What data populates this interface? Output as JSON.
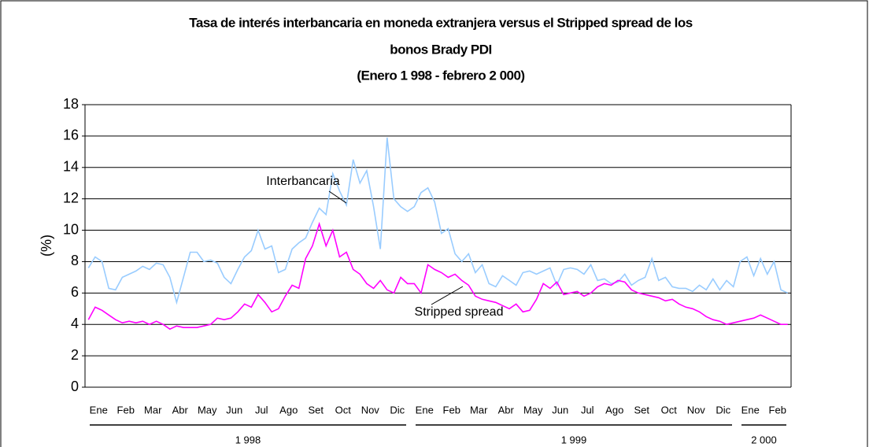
{
  "chart_data": {
    "type": "line",
    "title": [
      "Tasa de interés interbancaria en moneda extranjera versus el Stripped spread de los",
      "bonos Brady PDI"
    ],
    "subtitle": "(Enero 1 998 - febrero 2 000)",
    "y_label": "(%)",
    "ylim": [
      0,
      18
    ],
    "yticks": [
      0,
      2,
      4,
      6,
      8,
      10,
      12,
      14,
      16,
      18
    ],
    "grid": true,
    "xlim": [
      0,
      26
    ],
    "xticks": [
      {
        "value": 0.5,
        "label": "Ene"
      },
      {
        "value": 1.5,
        "label": "Feb"
      },
      {
        "value": 2.5,
        "label": "Mar"
      },
      {
        "value": 3.5,
        "label": "Abr"
      },
      {
        "value": 4.5,
        "label": "May"
      },
      {
        "value": 5.5,
        "label": "Jun"
      },
      {
        "value": 6.5,
        "label": "Jul"
      },
      {
        "value": 7.5,
        "label": "Ago"
      },
      {
        "value": 8.5,
        "label": "Set"
      },
      {
        "value": 9.5,
        "label": "Oct"
      },
      {
        "value": 10.5,
        "label": "Nov"
      },
      {
        "value": 11.5,
        "label": "Dic"
      },
      {
        "value": 12.5,
        "label": "Ene"
      },
      {
        "value": 13.5,
        "label": "Feb"
      },
      {
        "value": 14.5,
        "label": "Mar"
      },
      {
        "value": 15.5,
        "label": "Abr"
      },
      {
        "value": 16.5,
        "label": "May"
      },
      {
        "value": 17.5,
        "label": "Jun"
      },
      {
        "value": 18.5,
        "label": "Jul"
      },
      {
        "value": 19.5,
        "label": "Ago"
      },
      {
        "value": 20.5,
        "label": "Set"
      },
      {
        "value": 21.5,
        "label": "Oct"
      },
      {
        "value": 22.5,
        "label": "Nov"
      },
      {
        "value": 23.5,
        "label": "Dic"
      },
      {
        "value": 24.5,
        "label": "Ene"
      },
      {
        "value": 25.5,
        "label": "Feb"
      }
    ],
    "x_groups": [
      {
        "label": "1 998",
        "range": [
          0,
          12
        ]
      },
      {
        "label": "1 999",
        "range": [
          12,
          24
        ]
      },
      {
        "label": "2 000",
        "range": [
          24,
          26
        ]
      }
    ],
    "annotations": [
      "Interbancaria",
      "Stripped spread"
    ],
    "x": [
      0.125,
      0.375,
      0.625,
      0.875,
      1.125,
      1.375,
      1.625,
      1.875,
      2.125,
      2.375,
      2.625,
      2.875,
      3.125,
      3.375,
      3.625,
      3.875,
      4.125,
      4.375,
      4.625,
      4.875,
      5.125,
      5.375,
      5.625,
      5.875,
      6.125,
      6.375,
      6.625,
      6.875,
      7.125,
      7.375,
      7.625,
      7.875,
      8.125,
      8.375,
      8.625,
      8.875,
      9.125,
      9.375,
      9.625,
      9.875,
      10.125,
      10.375,
      10.625,
      10.875,
      11.125,
      11.375,
      11.625,
      11.875,
      12.125,
      12.375,
      12.625,
      12.875,
      13.125,
      13.375,
      13.625,
      13.875,
      14.125,
      14.375,
      14.625,
      14.875,
      15.125,
      15.375,
      15.625,
      15.875,
      16.125,
      16.375,
      16.625,
      16.875,
      17.125,
      17.375,
      17.625,
      17.875,
      18.125,
      18.375,
      18.625,
      18.875,
      19.125,
      19.375,
      19.625,
      19.875,
      20.125,
      20.375,
      20.625,
      20.875,
      21.125,
      21.375,
      21.625,
      21.875,
      22.125,
      22.375,
      22.625,
      22.875,
      23.125,
      23.375,
      23.625,
      23.875,
      24.125,
      24.375,
      24.625,
      24.875,
      25.125,
      25.375,
      25.625,
      25.875
    ],
    "series": [
      {
        "name": "Interbancaria",
        "color": "#99ccff",
        "values": [
          7.6,
          8.3,
          8.0,
          6.3,
          6.2,
          7.0,
          7.2,
          7.4,
          7.7,
          7.5,
          7.9,
          7.8,
          7.0,
          5.4,
          7.0,
          8.6,
          8.6,
          8.0,
          8.1,
          7.9,
          7.0,
          6.6,
          7.5,
          8.3,
          8.7,
          10.0,
          8.8,
          9.0,
          7.3,
          7.5,
          8.8,
          9.2,
          9.5,
          10.5,
          11.4,
          11.0,
          13.6,
          12.5,
          11.6,
          14.5,
          13.0,
          13.8,
          11.5,
          8.8,
          15.9,
          12.0,
          11.5,
          11.2,
          11.5,
          12.4,
          12.7,
          11.8,
          9.8,
          10.1,
          8.5,
          8.0,
          8.5,
          7.3,
          7.8,
          6.6,
          6.4,
          7.1,
          6.8,
          6.5,
          7.3,
          7.4,
          7.2,
          7.4,
          7.6,
          6.5,
          7.5,
          7.6,
          7.5,
          7.2,
          7.8,
          6.8,
          6.9,
          6.6,
          6.7,
          7.2,
          6.5,
          6.8,
          7.0,
          8.2,
          6.8,
          7.0,
          6.4,
          6.3,
          6.3,
          6.1,
          6.5,
          6.2,
          6.9,
          6.2,
          6.8,
          6.4,
          8.0,
          8.3,
          7.1,
          8.2,
          7.2,
          8.0,
          6.2,
          6.0
        ]
      },
      {
        "name": "Stripped spread",
        "color": "#ff00ff",
        "values": [
          4.3,
          5.1,
          4.9,
          4.6,
          4.3,
          4.1,
          4.2,
          4.1,
          4.2,
          4.0,
          4.2,
          4.0,
          3.7,
          3.9,
          3.8,
          3.8,
          3.8,
          3.9,
          4.0,
          4.4,
          4.3,
          4.4,
          4.8,
          5.3,
          5.1,
          5.9,
          5.4,
          4.8,
          5.0,
          5.8,
          6.5,
          6.3,
          8.2,
          9.0,
          10.4,
          9.0,
          10.0,
          8.3,
          8.6,
          7.5,
          7.2,
          6.6,
          6.3,
          6.8,
          6.2,
          6.0,
          7.0,
          6.6,
          6.6,
          6.0,
          7.8,
          7.5,
          7.3,
          7.0,
          7.2,
          6.8,
          6.5,
          5.8,
          5.6,
          5.5,
          5.4,
          5.2,
          5.0,
          5.3,
          4.8,
          4.9,
          5.6,
          6.6,
          6.3,
          6.7,
          5.9,
          6.0,
          6.1,
          5.8,
          6.0,
          6.4,
          6.6,
          6.5,
          6.8,
          6.7,
          6.2,
          6.0,
          5.9,
          5.8,
          5.7,
          5.5,
          5.6,
          5.3,
          5.1,
          5.0,
          4.8,
          4.5,
          4.3,
          4.2,
          4.0,
          4.1,
          4.2,
          4.3,
          4.4,
          4.6,
          4.4,
          4.2,
          4.0,
          4.0
        ]
      }
    ]
  }
}
